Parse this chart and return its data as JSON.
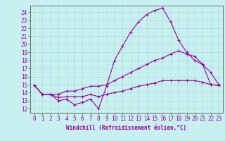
{
  "xlabel": "Windchill (Refroidissement éolien,°C)",
  "background_color": "#c8f0f0",
  "grid_color": "#b0dede",
  "line_color": "#990099",
  "x_ticks": [
    0,
    1,
    2,
    3,
    4,
    5,
    6,
    7,
    8,
    9,
    10,
    11,
    12,
    13,
    14,
    15,
    16,
    17,
    18,
    19,
    20,
    21,
    22,
    23
  ],
  "y_ticks": [
    12,
    13,
    14,
    15,
    16,
    17,
    18,
    19,
    20,
    21,
    22,
    23,
    24
  ],
  "xlim": [
    -0.5,
    23.5
  ],
  "ylim": [
    11.5,
    24.8
  ],
  "series1_x": [
    0,
    1,
    2,
    3,
    4,
    5,
    6,
    7,
    8,
    9,
    10,
    11,
    12,
    13,
    14,
    15,
    16,
    17,
    18,
    19,
    20,
    21,
    22,
    23
  ],
  "series1_y": [
    14.9,
    13.8,
    13.8,
    13.0,
    13.2,
    12.5,
    12.8,
    13.2,
    12.0,
    14.8,
    18.0,
    19.8,
    21.5,
    22.8,
    23.7,
    24.2,
    24.5,
    22.8,
    20.5,
    19.0,
    18.0,
    17.5,
    15.0,
    14.9
  ],
  "series2_x": [
    0,
    1,
    2,
    3,
    4,
    5,
    6,
    7,
    8,
    9,
    10,
    11,
    12,
    13,
    14,
    15,
    16,
    17,
    18,
    19,
    20,
    21,
    22,
    23
  ],
  "series2_y": [
    14.9,
    13.8,
    13.8,
    13.8,
    14.2,
    14.2,
    14.5,
    14.8,
    14.8,
    15.0,
    15.5,
    16.0,
    16.5,
    17.0,
    17.5,
    18.0,
    18.3,
    18.8,
    19.2,
    18.8,
    18.5,
    17.5,
    16.5,
    15.0
  ],
  "series3_x": [
    0,
    1,
    2,
    3,
    4,
    5,
    6,
    7,
    8,
    9,
    10,
    11,
    12,
    13,
    14,
    15,
    16,
    17,
    18,
    19,
    20,
    21,
    22,
    23
  ],
  "series3_y": [
    14.9,
    13.8,
    13.8,
    13.4,
    13.5,
    13.5,
    13.5,
    13.8,
    13.5,
    13.8,
    14.0,
    14.2,
    14.5,
    14.8,
    15.0,
    15.2,
    15.5,
    15.5,
    15.5,
    15.5,
    15.5,
    15.3,
    15.0,
    14.9
  ],
  "tick_fontsize": 5.5,
  "label_fontsize": 5.5
}
